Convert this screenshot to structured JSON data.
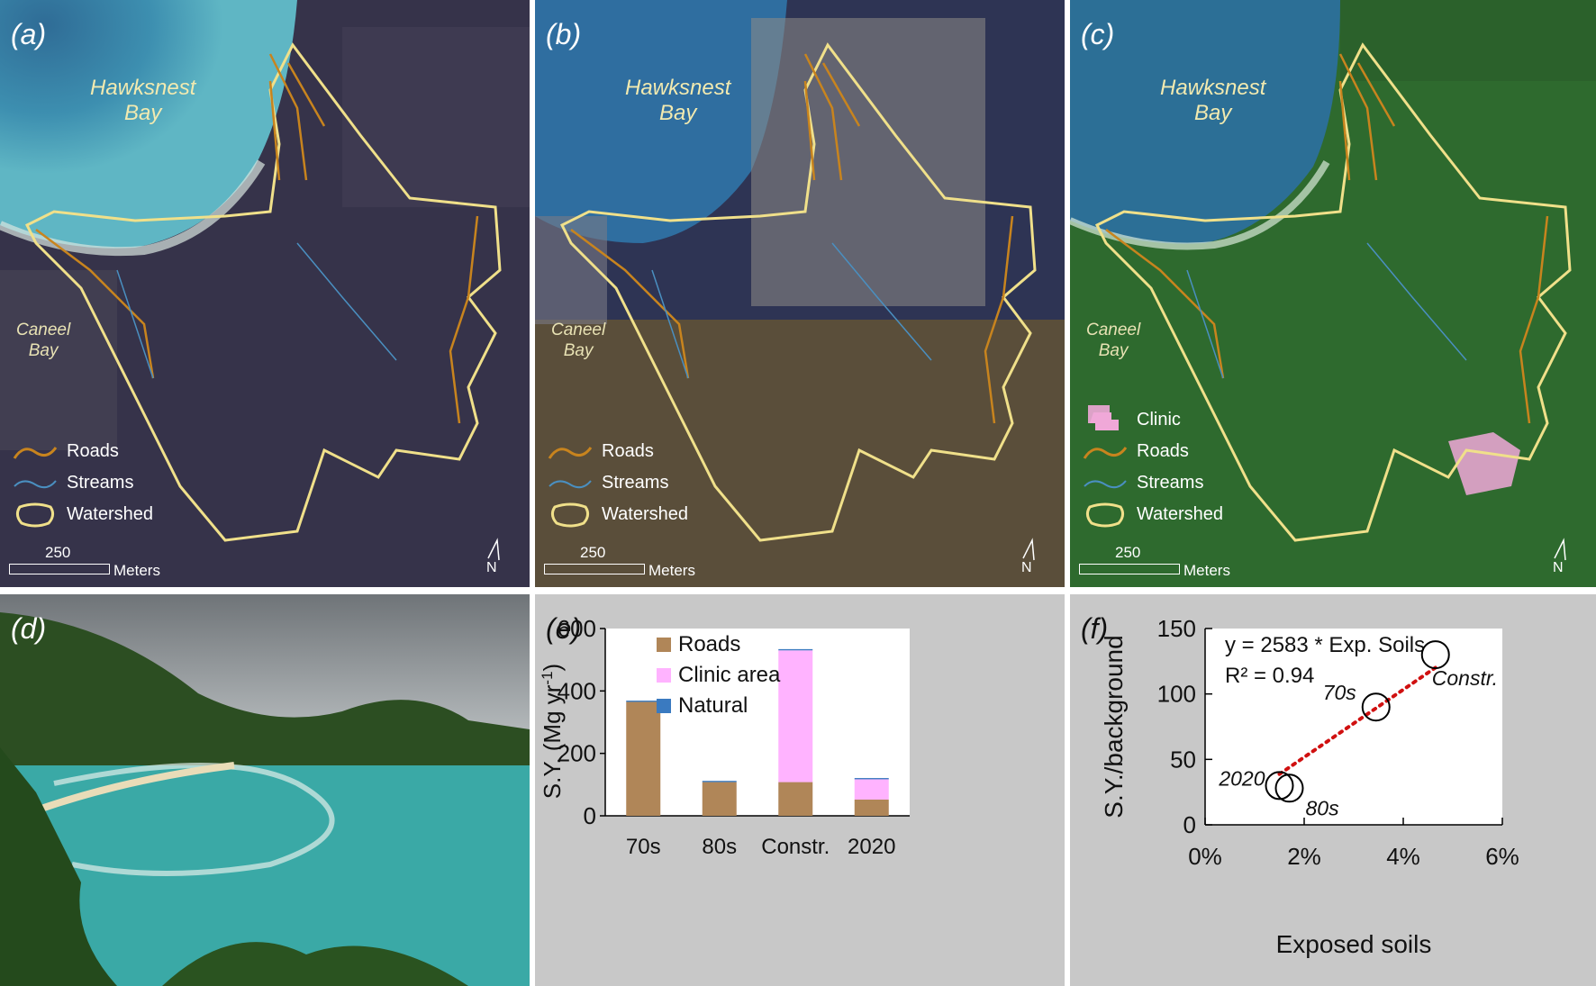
{
  "panels": {
    "a": {
      "label": "(a)",
      "bay_main": [
        "Hawksnest",
        "Bay"
      ],
      "bay_side": [
        "Caneel",
        "Bay"
      ],
      "legend": [
        "Roads",
        "Streams",
        "Watershed"
      ],
      "scale_value": "250",
      "scale_unit": "Meters",
      "north": "N"
    },
    "b": {
      "label": "(b)",
      "bay_main": [
        "Hawksnest",
        "Bay"
      ],
      "bay_side": [
        "Caneel",
        "Bay"
      ],
      "legend": [
        "Roads",
        "Streams",
        "Watershed"
      ],
      "scale_value": "250",
      "scale_unit": "Meters",
      "north": "N"
    },
    "c": {
      "label": "(c)",
      "bay_main": [
        "Hawksnest",
        "Bay"
      ],
      "bay_side": [
        "Caneel",
        "Bay"
      ],
      "legend": [
        "Clinic",
        "Roads",
        "Streams",
        "Watershed"
      ],
      "scale_value": "250",
      "scale_unit": "Meters",
      "north": "N"
    },
    "d": {
      "label": "(d)"
    },
    "e": {
      "label": "(e)"
    },
    "f": {
      "label": "(f)"
    }
  },
  "colors": {
    "roads": "#c8841e",
    "streams": "#4a8fc0",
    "watershed": "#f0e08a",
    "clinic": "#f0a8d8",
    "bar_roads": "#b08658",
    "bar_clinic": "#ffb3ff",
    "bar_natural": "#3a7ac0",
    "fit_line": "#d01010"
  },
  "chart_data": [
    {
      "type": "bar",
      "stacked": true,
      "categories": [
        "70s",
        "80s",
        "Constr.",
        "2020"
      ],
      "series": [
        {
          "name": "Roads",
          "values": [
            365,
            108,
            108,
            52
          ]
        },
        {
          "name": "Clinic area",
          "values": [
            0,
            0,
            422,
            65
          ]
        },
        {
          "name": "Natural",
          "values": [
            4,
            4,
            4,
            4
          ]
        }
      ],
      "ylabel": "S.Y. (Mg yr",
      "ylabel_sup": "-1",
      "ylabel_close": ")",
      "ylim": [
        0,
        600
      ],
      "yticks": [
        0,
        200,
        400,
        600
      ],
      "legend": "top-center"
    },
    {
      "type": "scatter",
      "points": [
        {
          "label": "2020",
          "x": 1.5,
          "y": 30
        },
        {
          "label": "80s",
          "x": 1.7,
          "y": 28
        },
        {
          "label": "70s",
          "x": 3.45,
          "y": 90
        },
        {
          "label": "Constr.",
          "x": 4.65,
          "y": 130
        }
      ],
      "fit": {
        "slope": 2583,
        "x_range": [
          1.5,
          4.65
        ]
      },
      "equation": "y = 2583 * Exp. Soils",
      "r2": "R² = 0.94",
      "xlabel": "Exposed soils",
      "ylabel": "S.Y./background",
      "xlim": [
        0,
        6
      ],
      "xticks": [
        "0%",
        "2%",
        "4%",
        "6%"
      ],
      "xtick_values": [
        0,
        2,
        4,
        6
      ],
      "ylim": [
        0,
        150
      ],
      "yticks": [
        0,
        50,
        100,
        150
      ]
    }
  ]
}
